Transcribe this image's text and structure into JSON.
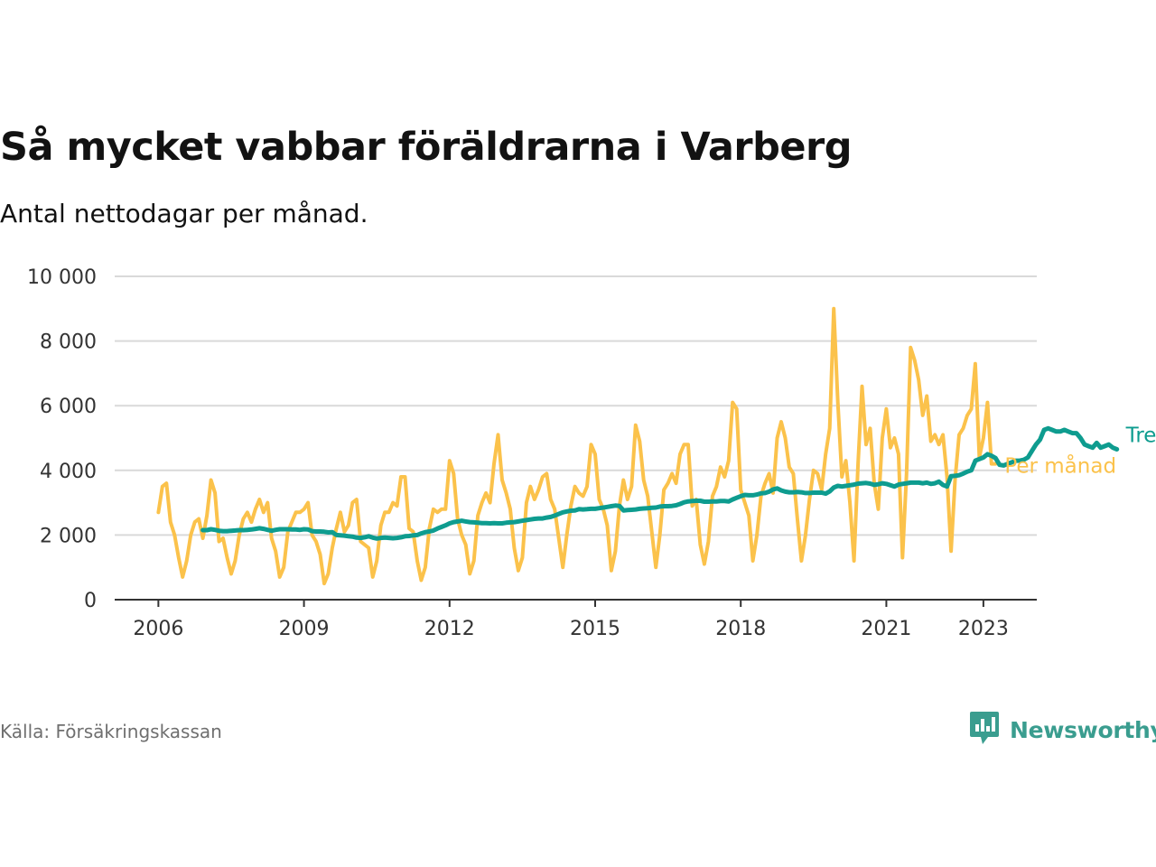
{
  "title": "Så mycket vabbar föräldrarna i Varberg",
  "subtitle": "Antal nettodagar per månad.",
  "source": "Källa: Försäkringskassan",
  "brand": {
    "name": "Newsworthy",
    "icon": "newsworthy-logo-icon"
  },
  "colors": {
    "monthly": "#fbc24b",
    "trend": "#0e9c8f",
    "grid": "#d9d9d9",
    "axis": "#333333",
    "text": "#121212"
  },
  "chart_data": {
    "type": "line",
    "y_ticks": [
      "0",
      "2 000",
      "4 000",
      "6 000",
      "8 000",
      "10 000"
    ],
    "x_ticks": [
      "2006",
      "2009",
      "2012",
      "2015",
      "2018",
      "2021",
      "2023"
    ],
    "ylim": [
      0,
      10000
    ],
    "xlim": [
      2005.1,
      2024.1
    ],
    "grid": true,
    "series": [
      {
        "name": "Per månad",
        "color": "#fbc24b",
        "start": 2006.0,
        "step_months": 1,
        "values": [
          2700,
          3500,
          3600,
          2400,
          2000,
          1300,
          700,
          1200,
          2000,
          2400,
          2500,
          1900,
          2600,
          3700,
          3300,
          1800,
          1900,
          1300,
          800,
          1200,
          2000,
          2500,
          2700,
          2400,
          2800,
          3100,
          2700,
          3000,
          1900,
          1500,
          700,
          1000,
          2100,
          2400,
          2700,
          2700,
          2800,
          3000,
          2000,
          1800,
          1400,
          500,
          800,
          1600,
          2200,
          2700,
          2100,
          2300,
          3000,
          3100,
          1800,
          1700,
          1600,
          700,
          1200,
          2300,
          2700,
          2700,
          3000,
          2900,
          3800,
          3800,
          2200,
          2100,
          1200,
          600,
          1000,
          2200,
          2800,
          2700,
          2800,
          2800,
          4300,
          3900,
          2500,
          2000,
          1700,
          800,
          1200,
          2600,
          3000,
          3300,
          3000,
          4200,
          5100,
          3700,
          3300,
          2800,
          1600,
          900,
          1300,
          3000,
          3500,
          3100,
          3400,
          3800,
          3900,
          3100,
          2800,
          1900,
          1000,
          2000,
          2900,
          3500,
          3300,
          3200,
          3500,
          4800,
          4500,
          3100,
          2800,
          2300,
          900,
          1500,
          2900,
          3700,
          3100,
          3500,
          5400,
          4900,
          3700,
          3200,
          2100,
          1000,
          2000,
          3400,
          3600,
          3900,
          3600,
          4500,
          4800,
          4800,
          2900,
          3100,
          1700,
          1100,
          1800,
          3200,
          3500,
          4100,
          3800,
          4300,
          6100,
          5900,
          3400,
          3000,
          2600,
          1200,
          2000,
          3200,
          3600,
          3900,
          3300,
          5000,
          5500,
          5000,
          4100,
          3900,
          2500,
          1200,
          2000,
          3100,
          4000,
          3900,
          3400,
          4500,
          5300,
          9000,
          6100,
          3800,
          4300,
          3000,
          1200,
          4200,
          6600,
          4800,
          5300,
          3600,
          2800,
          5000,
          5900,
          4700,
          5000,
          4500,
          1300,
          3900,
          7800,
          7400,
          6800,
          5700,
          6300,
          4900,
          5100,
          4800,
          5100,
          3800,
          1500,
          3700,
          5100,
          5300,
          5700,
          5900,
          7300,
          4400,
          5000,
          6100,
          4200,
          4200
        ]
      },
      {
        "name": "Trend",
        "color": "#0e9c8f",
        "start": 2006.917,
        "step_months": 1,
        "values": [
          2150,
          2150,
          2180,
          2160,
          2130,
          2120,
          2120,
          2130,
          2140,
          2150,
          2150,
          2160,
          2170,
          2190,
          2210,
          2190,
          2160,
          2130,
          2160,
          2180,
          2180,
          2180,
          2170,
          2170,
          2160,
          2180,
          2170,
          2120,
          2110,
          2110,
          2100,
          2080,
          2090,
          2000,
          1990,
          1980,
          1960,
          1950,
          1920,
          1910,
          1930,
          1960,
          1920,
          1890,
          1910,
          1920,
          1910,
          1900,
          1910,
          1930,
          1960,
          1970,
          1990,
          2000,
          2050,
          2090,
          2110,
          2140,
          2200,
          2250,
          2300,
          2360,
          2400,
          2420,
          2440,
          2420,
          2400,
          2390,
          2380,
          2370,
          2370,
          2360,
          2370,
          2360,
          2360,
          2380,
          2390,
          2400,
          2420,
          2440,
          2460,
          2480,
          2500,
          2510,
          2510,
          2540,
          2560,
          2600,
          2650,
          2700,
          2730,
          2750,
          2760,
          2800,
          2790,
          2800,
          2810,
          2810,
          2830,
          2850,
          2870,
          2890,
          2910,
          2900,
          2760,
          2770,
          2780,
          2790,
          2810,
          2820,
          2830,
          2840,
          2850,
          2880,
          2890,
          2890,
          2900,
          2920,
          2960,
          3010,
          3040,
          3050,
          3060,
          3060,
          3030,
          3030,
          3040,
          3040,
          3050,
          3050,
          3040,
          3100,
          3150,
          3200,
          3240,
          3230,
          3230,
          3250,
          3290,
          3300,
          3340,
          3410,
          3440,
          3380,
          3340,
          3320,
          3320,
          3330,
          3320,
          3300,
          3300,
          3310,
          3310,
          3310,
          3280,
          3350,
          3470,
          3520,
          3500,
          3520,
          3540,
          3560,
          3590,
          3600,
          3610,
          3590,
          3550,
          3570,
          3600,
          3580,
          3540,
          3500,
          3560,
          3580,
          3600,
          3620,
          3620,
          3620,
          3600,
          3620,
          3580,
          3600,
          3650,
          3550,
          3500,
          3820,
          3830,
          3850,
          3900,
          3960,
          4000,
          4300,
          4350,
          4400,
          4500,
          4450,
          4380,
          4170,
          4150,
          4200,
          4250,
          4300,
          4300,
          4330,
          4400,
          4600,
          4800,
          4950,
          5250,
          5300,
          5250,
          5200,
          5200,
          5250,
          5200,
          5150,
          5150,
          5000,
          4800,
          4750,
          4700,
          4850,
          4700,
          4750,
          4800,
          4700,
          4650
        ]
      }
    ]
  }
}
